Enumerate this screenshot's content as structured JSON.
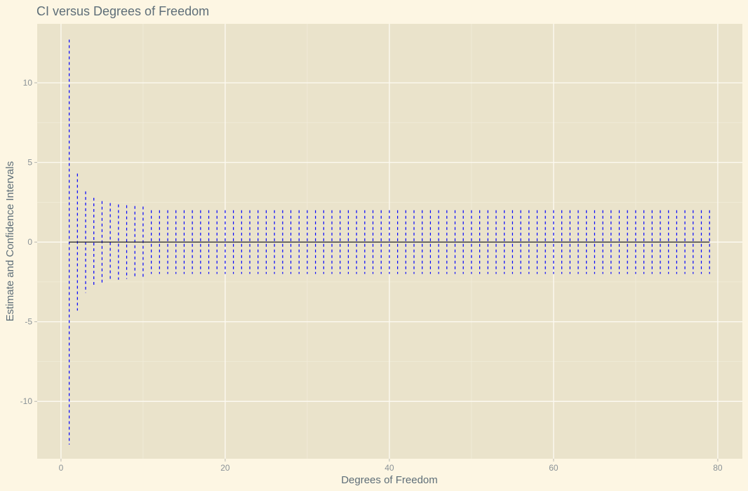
{
  "chart_data": {
    "type": "errorbar",
    "title": "CI versus Degrees of Freedom",
    "xlabel": "Degrees of Freedom",
    "ylabel": "Estimate and Confidence Intervals",
    "xlim": [
      -2.9,
      83
    ],
    "ylim": [
      -13.6,
      13.7
    ],
    "x_ticks": [
      0,
      20,
      40,
      60,
      80
    ],
    "x_tick_labels": [
      "0",
      "20",
      "40",
      "60",
      "80"
    ],
    "y_ticks": [
      -10,
      -5,
      0,
      5,
      10
    ],
    "y_tick_labels": [
      "-10",
      "-5",
      "0",
      "5",
      "10"
    ],
    "grid": true,
    "estimate": 0,
    "df": [
      1,
      79
    ],
    "interval_halfwidth_df1_to_10": [
      12.71,
      4.3,
      3.18,
      2.78,
      2.57,
      2.45,
      2.36,
      2.31,
      2.26,
      2.23
    ],
    "interval_halfwidth_df11_to_79": 2.0,
    "colors": {
      "background": "#fdf6e3",
      "panel": "#eae3cb",
      "grid_major": "#fcf9f0",
      "grid_minor": "#f1ecd9",
      "interval": "#0000ff",
      "estimate_line": "#1c1c1c",
      "text": "#5e6e78",
      "tick_text": "#8a9297"
    }
  }
}
